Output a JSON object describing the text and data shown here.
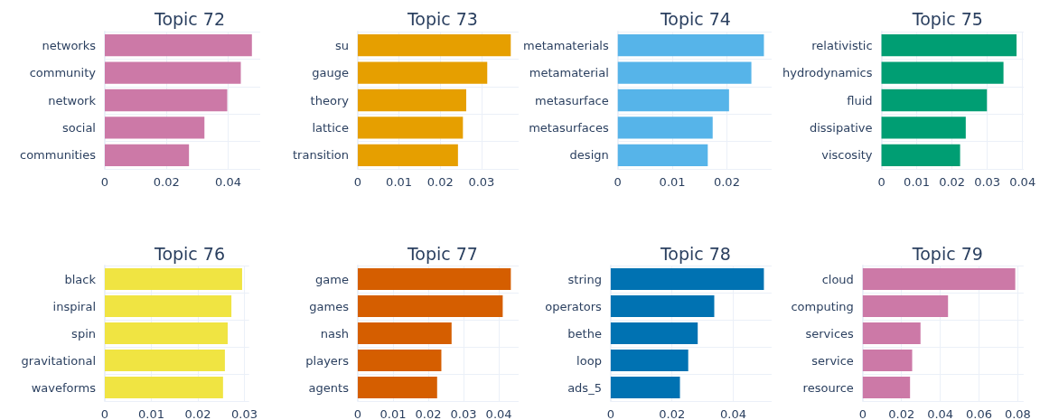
{
  "chart_data": [
    {
      "type": "bar",
      "orientation": "horizontal",
      "title": "Topic 72",
      "categories": [
        "networks",
        "community",
        "network",
        "social",
        "communities"
      ],
      "values": [
        0.0477,
        0.0441,
        0.0397,
        0.0323,
        0.0273
      ],
      "color": "#cc79a7",
      "xlim": [
        0,
        0.0504
      ],
      "xticks": [
        0,
        0.02,
        0.04
      ],
      "grid": true
    },
    {
      "type": "bar",
      "orientation": "horizontal",
      "title": "Topic 73",
      "categories": [
        "su",
        "gauge",
        "theory",
        "lattice",
        "transition"
      ],
      "values": [
        0.0371,
        0.0314,
        0.0263,
        0.0255,
        0.0243
      ],
      "color": "#e69f00",
      "xlim": [
        0,
        0.039
      ],
      "xticks": [
        0,
        0.01,
        0.02,
        0.03
      ],
      "grid": true
    },
    {
      "type": "bar",
      "orientation": "horizontal",
      "title": "Topic 74",
      "categories": [
        "metamaterials",
        "metamaterial",
        "metasurface",
        "metasurfaces",
        "design"
      ],
      "values": [
        0.0268,
        0.0245,
        0.0204,
        0.0174,
        0.0165
      ],
      "color": "#56b4e9",
      "xlim": [
        0,
        0.0282
      ],
      "xticks": [
        0,
        0.01,
        0.02
      ],
      "grid": true
    },
    {
      "type": "bar",
      "orientation": "horizontal",
      "title": "Topic 75",
      "categories": [
        "relativistic",
        "hydrodynamics",
        "fluid",
        "dissipative",
        "viscosity"
      ],
      "values": [
        0.0383,
        0.0346,
        0.0299,
        0.0239,
        0.0223
      ],
      "color": "#009e73",
      "xlim": [
        0,
        0.0403
      ],
      "xticks": [
        0,
        0.01,
        0.02,
        0.03,
        0.04
      ],
      "grid": true
    },
    {
      "type": "bar",
      "orientation": "horizontal",
      "title": "Topic 76",
      "categories": [
        "black",
        "inspiral",
        "spin",
        "gravitational",
        "waveforms"
      ],
      "values": [
        0.0295,
        0.0272,
        0.0264,
        0.0258,
        0.0254
      ],
      "color": "#f0e442",
      "xlim": [
        0,
        0.031
      ],
      "xticks": [
        0,
        0.01,
        0.02,
        0.03
      ],
      "grid": true
    },
    {
      "type": "bar",
      "orientation": "horizontal",
      "title": "Topic 77",
      "categories": [
        "game",
        "games",
        "nash",
        "players",
        "agents"
      ],
      "values": [
        0.0434,
        0.0411,
        0.0266,
        0.0237,
        0.0225
      ],
      "color": "#d55e00",
      "xlim": [
        0,
        0.0456
      ],
      "xticks": [
        0,
        0.01,
        0.02,
        0.03,
        0.04
      ],
      "grid": true
    },
    {
      "type": "bar",
      "orientation": "horizontal",
      "title": "Topic 78",
      "categories": [
        "string",
        "operators",
        "bethe",
        "loop",
        "ads_5"
      ],
      "values": [
        0.05,
        0.0338,
        0.0284,
        0.0253,
        0.0226
      ],
      "color": "#0072b2",
      "xlim": [
        0,
        0.0525
      ],
      "xticks": [
        0,
        0.02,
        0.04
      ],
      "grid": true
    },
    {
      "type": "bar",
      "orientation": "horizontal",
      "title": "Topic 79",
      "categories": [
        "cloud",
        "computing",
        "services",
        "service",
        "resource"
      ],
      "values": [
        0.0787,
        0.044,
        0.0298,
        0.0255,
        0.0244
      ],
      "color": "#cc79a7",
      "xlim": [
        0,
        0.083
      ],
      "xticks": [
        0,
        0.02,
        0.04,
        0.06,
        0.08
      ],
      "grid": true
    }
  ]
}
